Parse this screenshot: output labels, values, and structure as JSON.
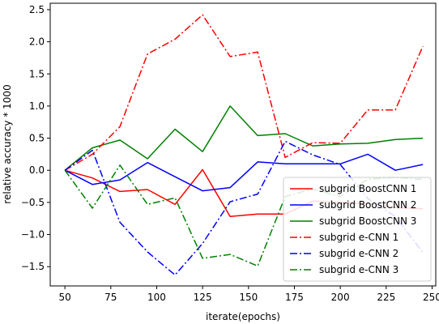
{
  "chart_data": {
    "type": "line",
    "xlabel": "iterate(epochs)",
    "ylabel": "relative accuracy * 1000",
    "xlim": [
      42,
      252
    ],
    "ylim": [
      -1.8,
      2.6
    ],
    "xticks": [
      50,
      75,
      100,
      125,
      150,
      175,
      200,
      225,
      250
    ],
    "yticks": [
      -1.5,
      -1.0,
      -0.5,
      0.0,
      0.5,
      1.0,
      1.5,
      2.0,
      2.5
    ],
    "ytick_labels": [
      "−1.5",
      "−1.0",
      "−0.5",
      "0.0",
      "0.5",
      "1.0",
      "1.5",
      "2.0",
      "2.5"
    ],
    "grid": false,
    "legend_position": "lower-right",
    "x": [
      50,
      65,
      80,
      95,
      110,
      125,
      140,
      155,
      170,
      185,
      200,
      215,
      230,
      245
    ],
    "series": [
      {
        "name": "subgrid BoostCNN 1",
        "color": "#ff0000",
        "dash": "solid",
        "values": [
          0.0,
          -0.12,
          -0.33,
          -0.3,
          -0.53,
          0.01,
          -0.72,
          -0.68,
          -0.68,
          -0.48,
          -0.5,
          -0.52,
          -0.58,
          -0.6
        ]
      },
      {
        "name": "subgrid BoostCNN 2",
        "color": "#0000ff",
        "dash": "solid",
        "values": [
          0.0,
          -0.22,
          -0.15,
          0.12,
          -0.1,
          -0.32,
          -0.27,
          0.13,
          0.1,
          0.1,
          0.1,
          0.25,
          0.0,
          0.09
        ]
      },
      {
        "name": "subgrid BoostCNN 3",
        "color": "#008000",
        "dash": "solid",
        "values": [
          0.0,
          0.35,
          0.47,
          0.18,
          0.64,
          0.29,
          1.0,
          0.54,
          0.57,
          0.38,
          0.41,
          0.42,
          0.48,
          0.5
        ]
      },
      {
        "name": "subgrid e-CNN 1",
        "color": "#ff0000",
        "dash": "dashdot",
        "values": [
          0.0,
          0.25,
          0.68,
          1.81,
          2.04,
          2.42,
          1.77,
          1.84,
          0.2,
          0.43,
          0.42,
          0.94,
          0.94,
          1.93
        ]
      },
      {
        "name": "subgrid e-CNN 2",
        "color": "#0000ff",
        "dash": "dashdot",
        "values": [
          0.0,
          0.31,
          -0.81,
          -1.27,
          -1.63,
          -1.14,
          -0.49,
          -0.37,
          0.45,
          0.24,
          0.09,
          -0.44,
          -0.72,
          -1.28
        ]
      },
      {
        "name": "subgrid e-CNN 3",
        "color": "#008000",
        "dash": "dashdot",
        "values": [
          0.0,
          -0.59,
          0.08,
          -0.53,
          -0.43,
          -1.37,
          -1.31,
          -1.49,
          -0.41,
          -0.29,
          -0.41,
          -0.14,
          -0.11,
          -0.14
        ]
      }
    ]
  }
}
